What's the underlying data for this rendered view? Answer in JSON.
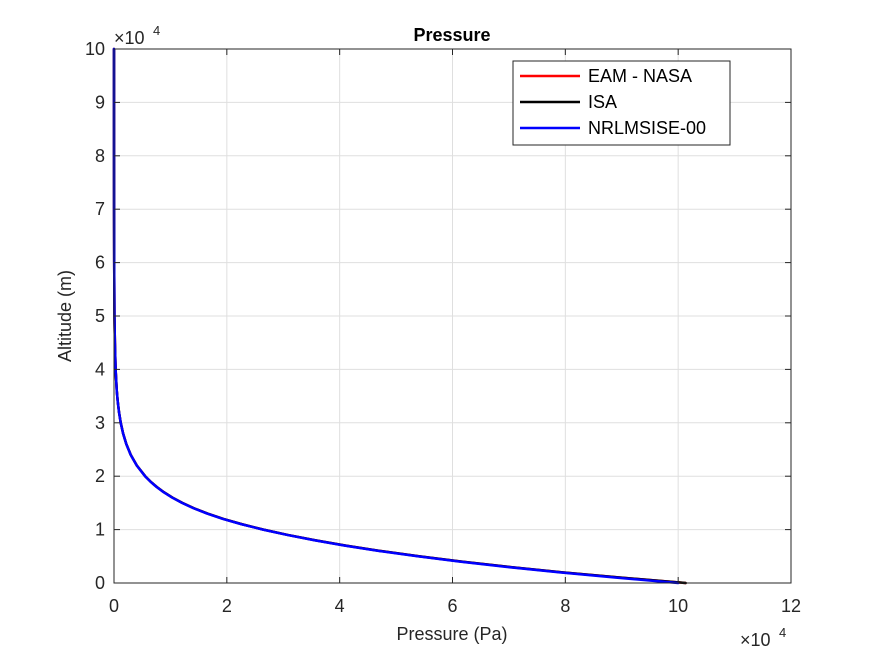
{
  "chart_data": {
    "type": "line",
    "title": "Pressure",
    "xlabel": "Pressure (Pa)",
    "ylabel": "Altitude (m)",
    "xlim": [
      0,
      120000
    ],
    "ylim": [
      0,
      100000
    ],
    "x_ticks": [
      0,
      2,
      4,
      6,
      8,
      10,
      12
    ],
    "y_ticks": [
      0,
      1,
      2,
      3,
      4,
      5,
      6,
      7,
      8,
      9,
      10
    ],
    "x_exponent": {
      "base": "×10",
      "power": "4"
    },
    "y_exponent": {
      "base": "×10",
      "power": "4"
    },
    "grid": true,
    "legend_position": "top-right",
    "series": [
      {
        "name": "EAM - NASA",
        "color": "#ff0000",
        "x": [
          101325,
          89876,
          79501,
          70121,
          61660,
          54048,
          47217,
          41105,
          35651,
          30800,
          26500,
          22700,
          19399,
          16579,
          14170,
          12111,
          10352,
          8849,
          7565,
          6467,
          5529,
          4047,
          2972,
          2188,
          1616,
          1197,
          889,
          663,
          491,
          287,
          159,
          80,
          34,
          11,
          3,
          1,
          0
        ],
        "y": [
          0,
          1000,
          2000,
          3000,
          4000,
          5000,
          6000,
          7000,
          8000,
          9000,
          10000,
          11000,
          12000,
          13000,
          14000,
          15000,
          16000,
          17000,
          18000,
          19000,
          20000,
          22000,
          24000,
          26000,
          28000,
          30000,
          32000,
          34000,
          36000,
          40000,
          45000,
          50000,
          60000,
          70000,
          80000,
          90000,
          100000
        ]
      },
      {
        "name": "ISA",
        "color": "#000000",
        "x": [
          101325,
          89876,
          79501,
          70121,
          61660,
          54048,
          47217,
          41105,
          35651,
          30800,
          26500,
          22700,
          19399,
          16579,
          14170,
          12111,
          10352,
          8849,
          7565,
          6467,
          5529,
          4047,
          2972,
          2188,
          1616,
          1197,
          889,
          663,
          491,
          287,
          159,
          80,
          34,
          11,
          3,
          1,
          0
        ],
        "y": [
          0,
          1000,
          2000,
          3000,
          4000,
          5000,
          6000,
          7000,
          8000,
          9000,
          10000,
          11000,
          12000,
          13000,
          14000,
          15000,
          16000,
          17000,
          18000,
          19000,
          20000,
          22000,
          24000,
          26000,
          28000,
          30000,
          32000,
          34000,
          36000,
          40000,
          45000,
          50000,
          60000,
          70000,
          80000,
          90000,
          100000
        ]
      },
      {
        "name": "NRLMSISE-00",
        "color": "#0000ff",
        "x": [
          100000,
          89000,
          79000,
          69700,
          61300,
          53800,
          47000,
          40900,
          35500,
          30700,
          26400,
          22600,
          19300,
          16500,
          14100,
          12050,
          10300,
          8800,
          7530,
          6440,
          5500,
          4030,
          2960,
          2180,
          1610,
          1190,
          886,
          660,
          490,
          286,
          158,
          79,
          33,
          10,
          2,
          0.5,
          0
        ],
        "y": [
          0,
          1000,
          2000,
          3000,
          4000,
          5000,
          6000,
          7000,
          8000,
          9000,
          10000,
          11000,
          12000,
          13000,
          14000,
          15000,
          16000,
          17000,
          18000,
          19000,
          20000,
          22000,
          24000,
          26000,
          28000,
          30000,
          32000,
          34000,
          36000,
          40000,
          45000,
          50000,
          60000,
          70000,
          80000,
          90000,
          100000
        ]
      }
    ]
  }
}
